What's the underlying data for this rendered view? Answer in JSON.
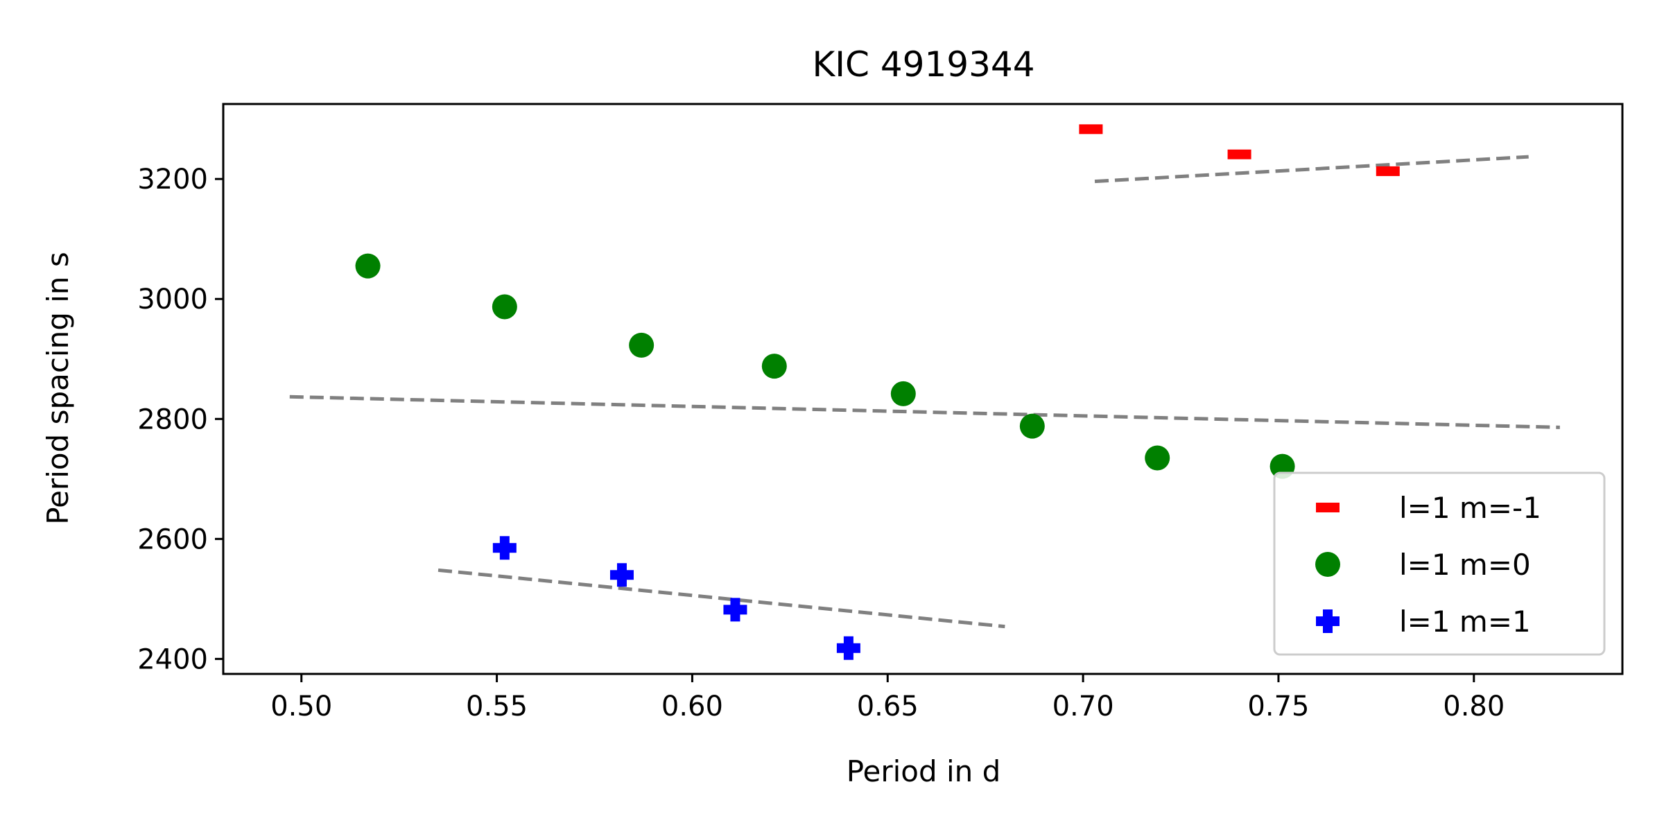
{
  "chart_data": {
    "type": "scatter",
    "title": "KIC 4919344",
    "xlabel": "Period in d",
    "ylabel": "Period spacing in s",
    "xlim": [
      0.48,
      0.838
    ],
    "ylim": [
      2375,
      3325
    ],
    "xticks": [
      0.5,
      0.55,
      0.6,
      0.65,
      0.7,
      0.75,
      0.8
    ],
    "xtick_labels": [
      "0.50",
      "0.55",
      "0.60",
      "0.65",
      "0.70",
      "0.75",
      "0.80"
    ],
    "yticks": [
      2400,
      2600,
      2800,
      3000,
      3200
    ],
    "ytick_labels": [
      "2400",
      "2600",
      "2800",
      "3000",
      "3200"
    ],
    "grid": false,
    "legend_position": "bottom-right",
    "series": [
      {
        "name": "l=1 m=-1",
        "marker": "hline",
        "color": "#ff0000",
        "x": [
          0.702,
          0.74,
          0.778
        ],
        "y": [
          3283,
          3241,
          3213
        ]
      },
      {
        "name": "l=1 m=0",
        "marker": "circle",
        "color": "#008000",
        "x": [
          0.517,
          0.552,
          0.587,
          0.621,
          0.654,
          0.687,
          0.719,
          0.751
        ],
        "y": [
          3055,
          2987,
          2923,
          2888,
          2842,
          2788,
          2735,
          2721
        ]
      },
      {
        "name": "l=1 m=1",
        "marker": "plus",
        "color": "#0000ff",
        "x": [
          0.552,
          0.582,
          0.611,
          0.64
        ],
        "y": [
          2585,
          2540,
          2482,
          2418
        ]
      }
    ],
    "fit_lines": [
      {
        "color": "#808080",
        "x": [
          0.497,
          0.822
        ],
        "y": [
          2837,
          2786
        ]
      },
      {
        "color": "#808080",
        "x": [
          0.703,
          0.814
        ],
        "y": [
          3196,
          3237
        ]
      },
      {
        "color": "#808080",
        "x": [
          0.535,
          0.68
        ],
        "y": [
          2548,
          2454
        ]
      }
    ]
  }
}
